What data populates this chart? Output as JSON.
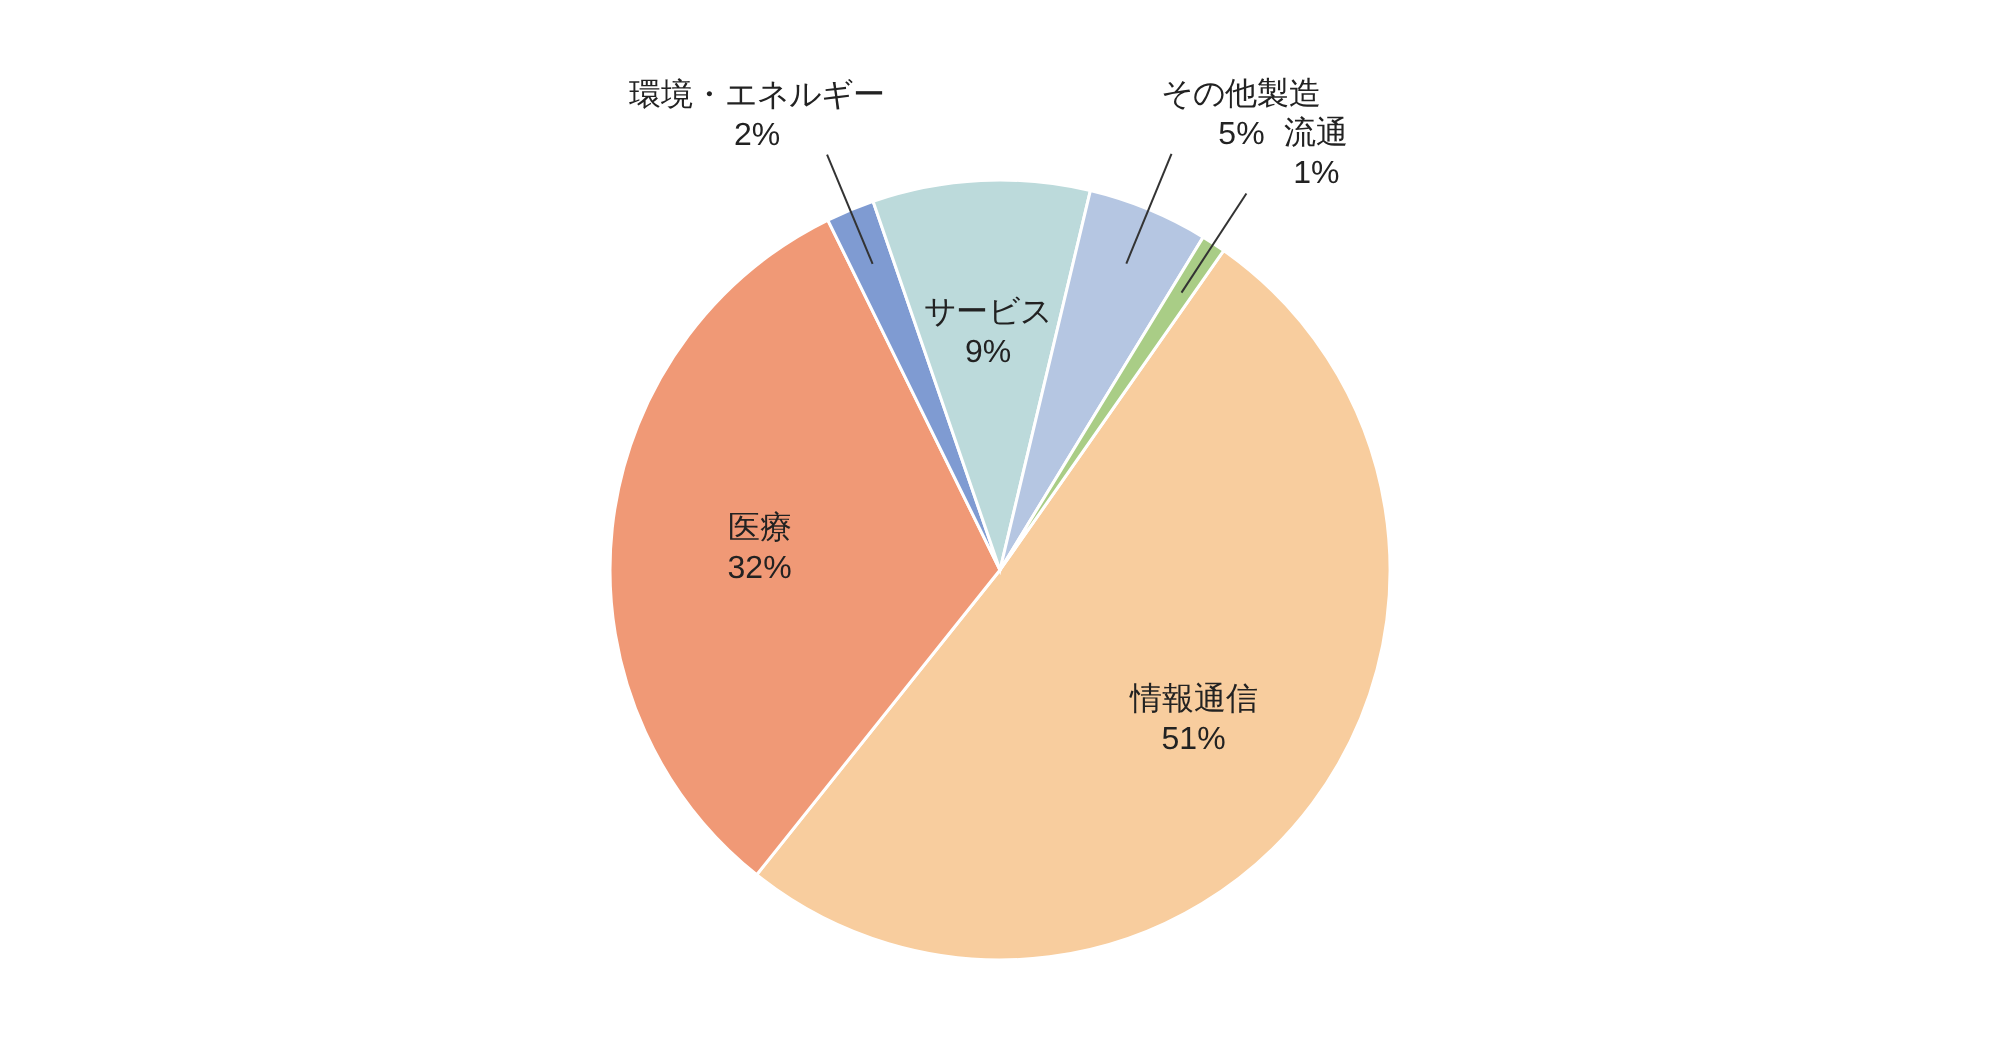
{
  "chart_data": {
    "type": "pie",
    "categories": [
      "情報通信",
      "医療",
      "環境・エネルギー",
      "サービス",
      "その他製造",
      "流通"
    ],
    "values": [
      51,
      32,
      2,
      9,
      5,
      1
    ],
    "value_labels": [
      "51%",
      "32%",
      "2%",
      "9%",
      "5%",
      "1%"
    ],
    "colors": [
      "#f8cd9e",
      "#f09976",
      "#7f9bd2",
      "#bcdadb",
      "#b5c6e2",
      "#a9cd86"
    ],
    "legend": false
  }
}
